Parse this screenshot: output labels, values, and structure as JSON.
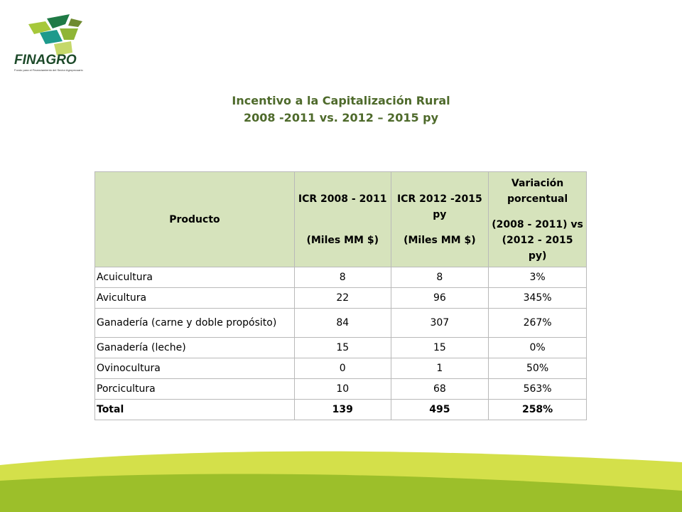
{
  "logo": {
    "text": "FINAGRO",
    "tagline": "Fondo para el Financiamiento del Sector Agropecuario"
  },
  "title": {
    "line1": "Incentivo a la Capitalización  Rural",
    "line2": "2008 -2011 vs. 2012 – 2015 py"
  },
  "table": {
    "headers": {
      "product": "Producto",
      "icr1_line1": "ICR 2008 - 2011",
      "icr1_line2": "(Miles MM $)",
      "icr2_line1": "ICR 2012 -2015 py",
      "icr2_line2": "(Miles MM $)",
      "var_line1": "Variación porcentual",
      "var_line2": "(2008 - 2011) vs (2012 - 2015 py)"
    },
    "rows": [
      {
        "product": "Acuicultura",
        "icr1": "8",
        "icr2": "8",
        "var": "3%"
      },
      {
        "product": "Avicultura",
        "icr1": "22",
        "icr2": "96",
        "var": "345%"
      },
      {
        "product": "Ganadería (carne y doble propósito)",
        "icr1": "84",
        "icr2": "307",
        "var": "267%"
      },
      {
        "product": "Ganadería (leche)",
        "icr1": "15",
        "icr2": "15",
        "var": "0%"
      },
      {
        "product": "Ovinocultura",
        "icr1": "0",
        "icr2": "1",
        "var": "50%"
      },
      {
        "product": "Porcicultura",
        "icr1": "10",
        "icr2": "68",
        "var": "563%"
      }
    ],
    "total": {
      "product": "Total",
      "icr1": "139",
      "icr2": "495",
      "var": "258%"
    }
  },
  "colors": {
    "title": "#4e6a2b",
    "header_bg": "#d6e3bc",
    "swoosh_light": "#d4e04a",
    "swoosh_dark": "#9cbf2a",
    "logo_dark_green": "#1f7a45",
    "logo_teal": "#1d9a8c",
    "logo_lime": "#a6c83b",
    "logo_olive": "#6f8b2f"
  }
}
